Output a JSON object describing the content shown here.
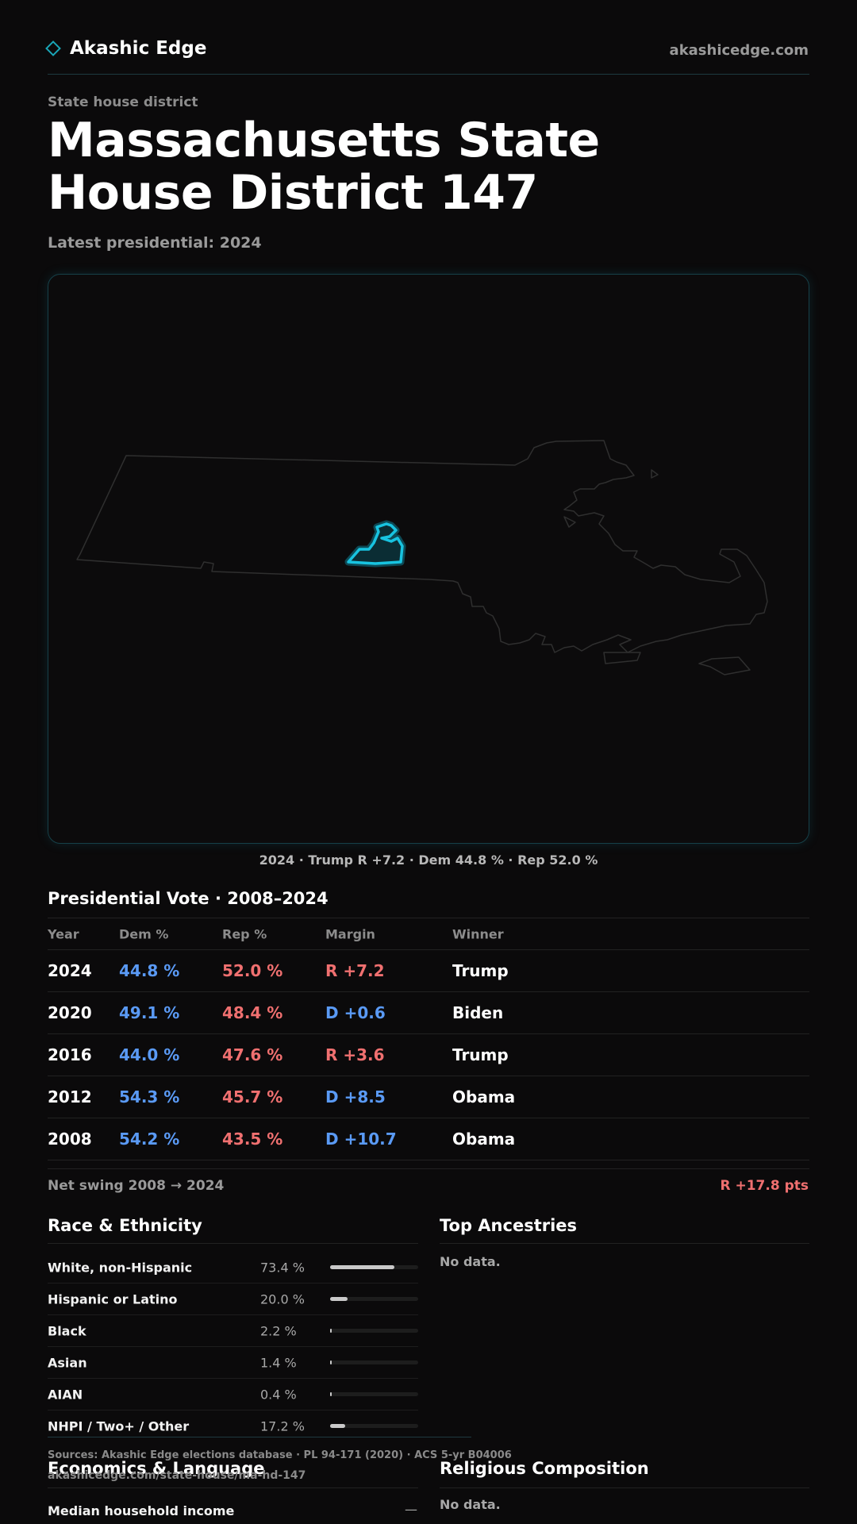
{
  "header": {
    "brand": "Akashic Edge",
    "site": "akashicedge.com"
  },
  "page": {
    "eyebrow": "State house district",
    "title": "Massachusetts State House District 147",
    "subtitle": "Latest presidential: 2024"
  },
  "map": {
    "caption": "2024 · Trump R +7.2 · Dem 44.8 % · Rep 52.0 %",
    "state_outline_color": "#2f2f2f",
    "district_color": "#18c3e0"
  },
  "presidential": {
    "title": "Presidential Vote · 2008–2024",
    "columns": [
      "Year",
      "Dem %",
      "Rep %",
      "Margin",
      "Winner"
    ],
    "rows": [
      {
        "year": "2024",
        "dem": "44.8 %",
        "rep": "52.0 %",
        "margin": "R +7.2",
        "party": "rep",
        "winner": "Trump"
      },
      {
        "year": "2020",
        "dem": "49.1 %",
        "rep": "48.4 %",
        "margin": "D +0.6",
        "party": "dem",
        "winner": "Biden"
      },
      {
        "year": "2016",
        "dem": "44.0 %",
        "rep": "47.6 %",
        "margin": "R +3.6",
        "party": "rep",
        "winner": "Trump"
      },
      {
        "year": "2012",
        "dem": "54.3 %",
        "rep": "45.7 %",
        "margin": "D +8.5",
        "party": "dem",
        "winner": "Obama"
      },
      {
        "year": "2008",
        "dem": "54.2 %",
        "rep": "43.5 %",
        "margin": "D +10.7",
        "party": "dem",
        "winner": "Obama"
      }
    ],
    "swing_label": "Net swing 2008 → 2024",
    "swing_value": "R +17.8 pts"
  },
  "race": {
    "title": "Race & Ethnicity",
    "rows": [
      {
        "label": "White, non-Hispanic",
        "value": "73.4 %",
        "pct": 73.4
      },
      {
        "label": "Hispanic or Latino",
        "value": "20.0 %",
        "pct": 20.0
      },
      {
        "label": "Black",
        "value": "2.2 %",
        "pct": 2.2
      },
      {
        "label": "Asian",
        "value": "1.4 %",
        "pct": 1.4
      },
      {
        "label": "AIAN",
        "value": "0.4 %",
        "pct": 0.4
      },
      {
        "label": "NHPI / Two+ / Other",
        "value": "17.2 %",
        "pct": 17.2
      }
    ]
  },
  "ancestries": {
    "title": "Top Ancestries",
    "empty": "No data."
  },
  "sources": {
    "text": "Sources: Akashic Edge elections database · PL 94-171 (2020) · ACS 5-yr B04006",
    "url": "akashicedge.com/state-house/ma-hd-147"
  },
  "economics": {
    "title": "Economics & Language",
    "rows": [
      {
        "label": "Median household income",
        "value": "—"
      }
    ]
  },
  "religion": {
    "title": "Religious Composition",
    "empty": "No data."
  }
}
